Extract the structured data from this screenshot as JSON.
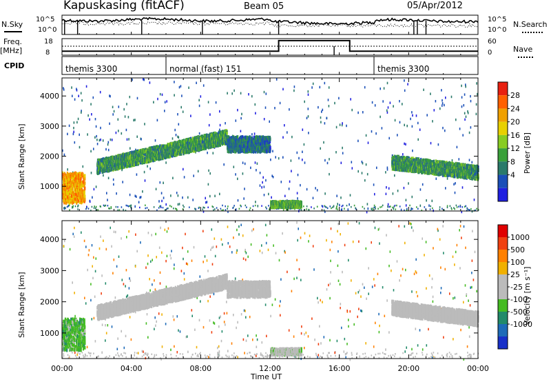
{
  "header": {
    "station": "Kapuskasing (fitACF)",
    "beam": "Beam 05",
    "date": "05/Apr/2012"
  },
  "top_panels": {
    "nsky_label": "N.Sky",
    "nsky_ticks": [
      "10^5",
      "10^0"
    ],
    "nsearch_label": "N.Search",
    "nsearch_ticks": [
      "10^5",
      "10^0"
    ],
    "freq_label": "Freq.",
    "freq_unit": "[MHz]",
    "freq_ticks": [
      "18",
      "8"
    ],
    "nave_label": "Nave",
    "nave_ticks": [
      "60",
      "0"
    ],
    "cpid_label": "CPID",
    "cpid_segments": [
      {
        "label": "themis 3300",
        "start_h": 0,
        "end_h": 6
      },
      {
        "label": "normal (fast) 151",
        "start_h": 6,
        "end_h": 18
      },
      {
        "label": "themis 3300",
        "start_h": 18,
        "end_h": 24
      }
    ],
    "freq_steps": [
      {
        "start_h": 0,
        "end_h": 12.5,
        "mhz": 10.4
      },
      {
        "start_h": 12.5,
        "end_h": 16.6,
        "mhz": 16.8
      },
      {
        "start_h": 16.6,
        "end_h": 24,
        "mhz": 10.4
      }
    ]
  },
  "power_panel": {
    "ylabel": "Slant Range [km]",
    "yticks": [
      "4000",
      "3000",
      "2000",
      "1000"
    ],
    "colorbar_label": "Power [dB]",
    "colorbar_ticks": [
      "28",
      "24",
      "20",
      "16",
      "12",
      "8",
      "4"
    ],
    "colors": [
      "#2020e0",
      "#1a4fb8",
      "#2a7a6a",
      "#3aa03a",
      "#88cc22",
      "#e8d000",
      "#f0a000",
      "#ff6000",
      "#e82010"
    ]
  },
  "velocity_panel": {
    "ylabel": "Slant Range [km]",
    "yticks": [
      "4000",
      "3000",
      "2000",
      "1000"
    ],
    "colorbar_label": "Velocity [m s⁻¹]",
    "colorbar_ticks": [
      "1000",
      "500",
      "100",
      "25",
      "-25",
      "-100",
      "-500",
      "-1000"
    ],
    "colors": [
      "#1830c8",
      "#1e6bb8",
      "#228a6a",
      "#44bb22",
      "#bbbbbb",
      "#bbbbbb",
      "#f0b000",
      "#ff8000",
      "#f04010",
      "#e00000"
    ]
  },
  "xaxis": {
    "label": "Time UT",
    "ticks": [
      "00:00",
      "04:00",
      "08:00",
      "12:00",
      "16:00",
      "20:00",
      "00:00"
    ]
  },
  "chart_data": [
    {
      "type": "heatmap",
      "title": "Power",
      "xlabel": "Time UT",
      "ylabel": "Slant Range [km]",
      "xlim_hours": [
        0,
        24
      ],
      "ylim_km": [
        180,
        4600
      ],
      "clim_db": [
        0,
        32
      ],
      "echo_bands": [
        {
          "start_h": 0.0,
          "end_h": 1.3,
          "range_km": [
            500,
            1500
          ],
          "power_db": 22
        },
        {
          "start_h": 2.0,
          "end_h": 9.5,
          "range_km_start": 1700,
          "range_km_end": 2700,
          "power_db": 10
        },
        {
          "start_h": 9.5,
          "end_h": 12.0,
          "range_km": [
            2200,
            2700
          ],
          "power_db": 7
        },
        {
          "start_h": 12.0,
          "end_h": 13.8,
          "range_km": [
            350,
            550
          ],
          "power_db": 12
        },
        {
          "start_h": 19.0,
          "end_h": 24.0,
          "range_km_start": 1850,
          "range_km_end": 1500,
          "power_db": 10
        }
      ]
    },
    {
      "type": "heatmap",
      "title": "Velocity",
      "xlabel": "Time UT",
      "ylabel": "Slant Range [km]",
      "xlim_hours": [
        0,
        24
      ],
      "ylim_km": [
        180,
        4600
      ],
      "clim_ms": [
        -1000,
        1000
      ],
      "echo_bands": [
        {
          "start_h": 0.0,
          "end_h": 1.3,
          "range_km": [
            500,
            1500
          ],
          "velocity_ms": -300
        },
        {
          "start_h": 2.0,
          "end_h": 9.5,
          "range_km_start": 1700,
          "range_km_end": 2700,
          "velocity_ms": 0
        },
        {
          "start_h": 9.5,
          "end_h": 12.0,
          "range_km": [
            2200,
            2700
          ],
          "velocity_ms": 0
        },
        {
          "start_h": 12.0,
          "end_h": 13.8,
          "range_km": [
            350,
            550
          ],
          "velocity_ms": -80
        },
        {
          "start_h": 19.0,
          "end_h": 24.0,
          "range_km_start": 1850,
          "range_km_end": 1500,
          "velocity_ms": 0
        }
      ]
    }
  ]
}
